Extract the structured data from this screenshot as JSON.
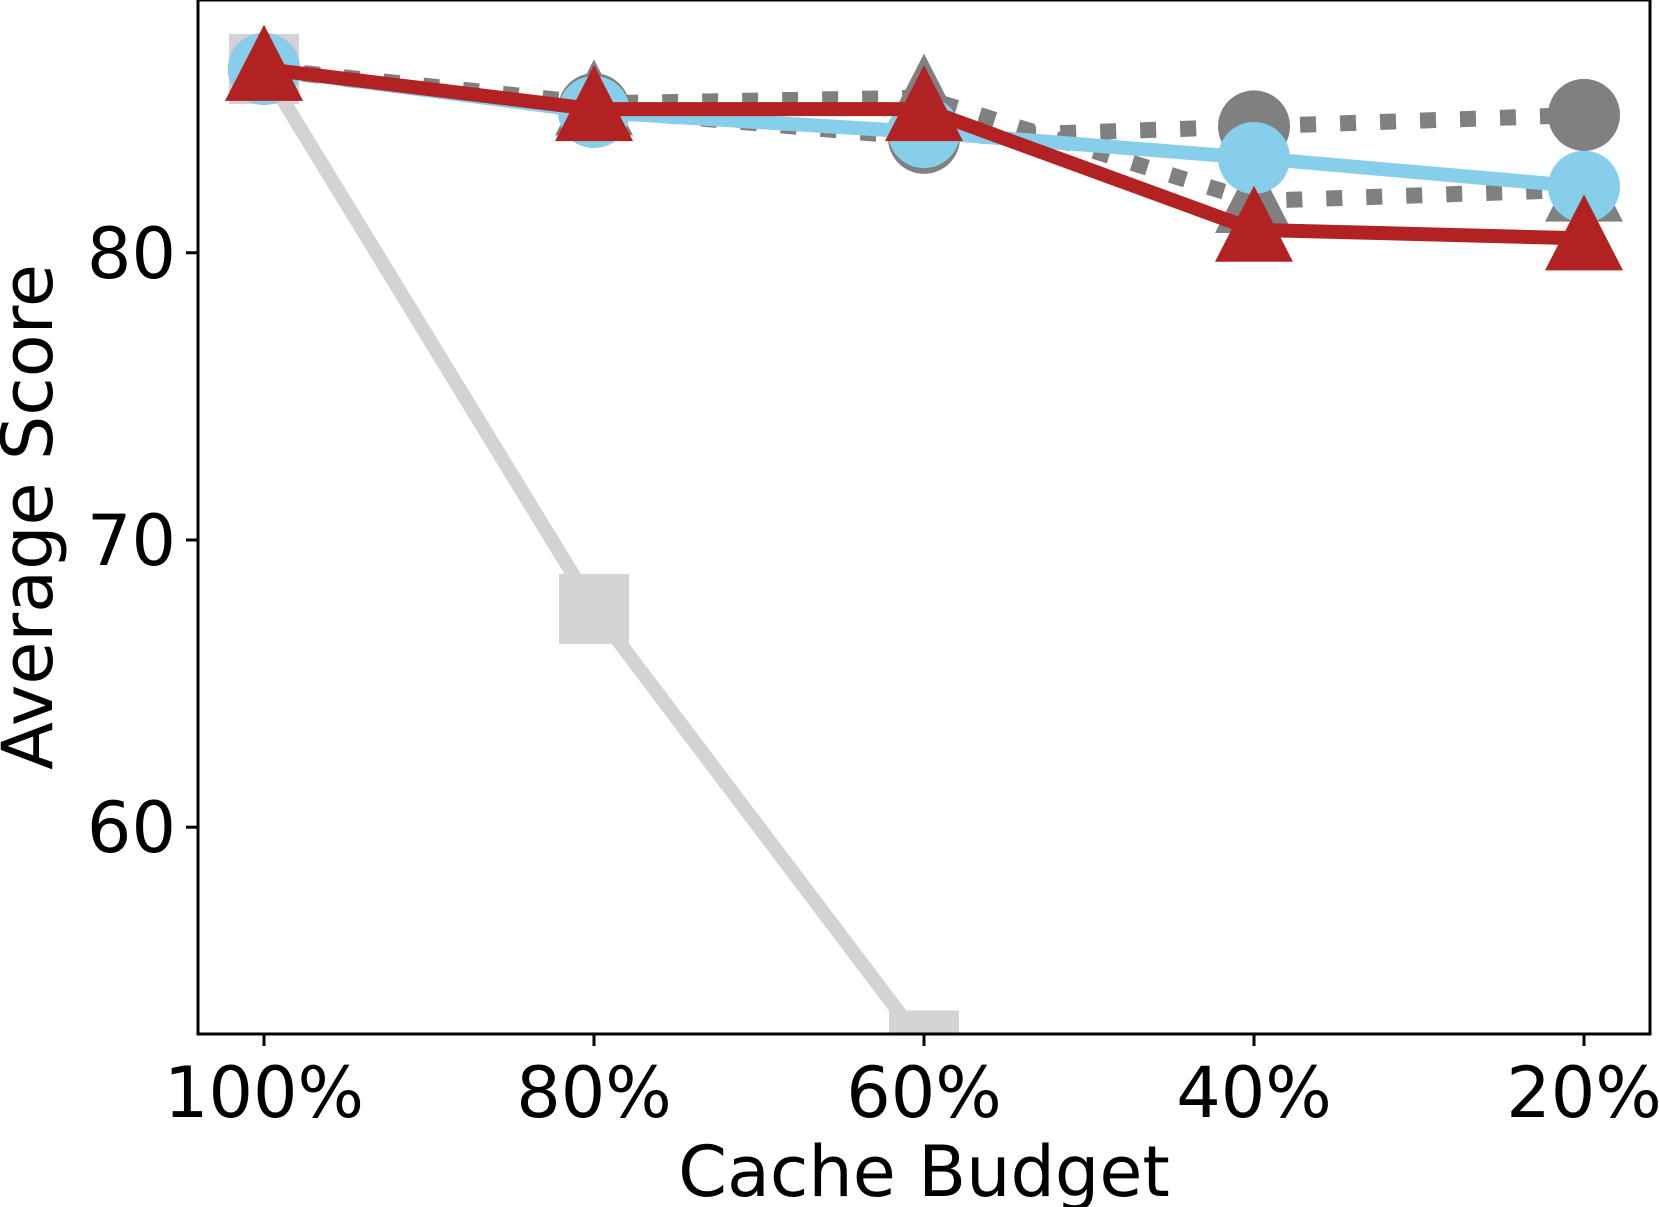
{
  "chart_data": {
    "type": "line",
    "title": "",
    "xlabel": "Cache Budget",
    "ylabel": "Average Score",
    "categories": [
      "100%",
      "80%",
      "60%",
      "40%",
      "20%"
    ],
    "ylim": [
      52.8,
      88.8
    ],
    "yticks": [
      60,
      70,
      80
    ],
    "grid": false,
    "legend": "none",
    "series": [
      {
        "color": "#d3d3d3",
        "line_style": "solid",
        "marker": "square",
        "values": [
          86.4,
          67.6,
          52.4,
          null,
          null
        ]
      },
      {
        "color": "#808080",
        "line_style": "dotted",
        "marker": "circle",
        "values": [
          86.4,
          85.0,
          84.0,
          84.4,
          84.8
        ]
      },
      {
        "color": "#808080",
        "line_style": "dotted",
        "marker": "triangle",
        "values": [
          86.4,
          85.2,
          85.4,
          81.8,
          82.2
        ]
      },
      {
        "color": "#87ceeb",
        "line_style": "solid",
        "marker": "circle",
        "values": [
          86.4,
          84.9,
          84.2,
          83.3,
          82.3
        ]
      },
      {
        "color": "#b22222",
        "line_style": "solid",
        "marker": "triangle",
        "values": [
          86.4,
          85.0,
          85.0,
          80.8,
          80.5
        ]
      }
    ]
  }
}
